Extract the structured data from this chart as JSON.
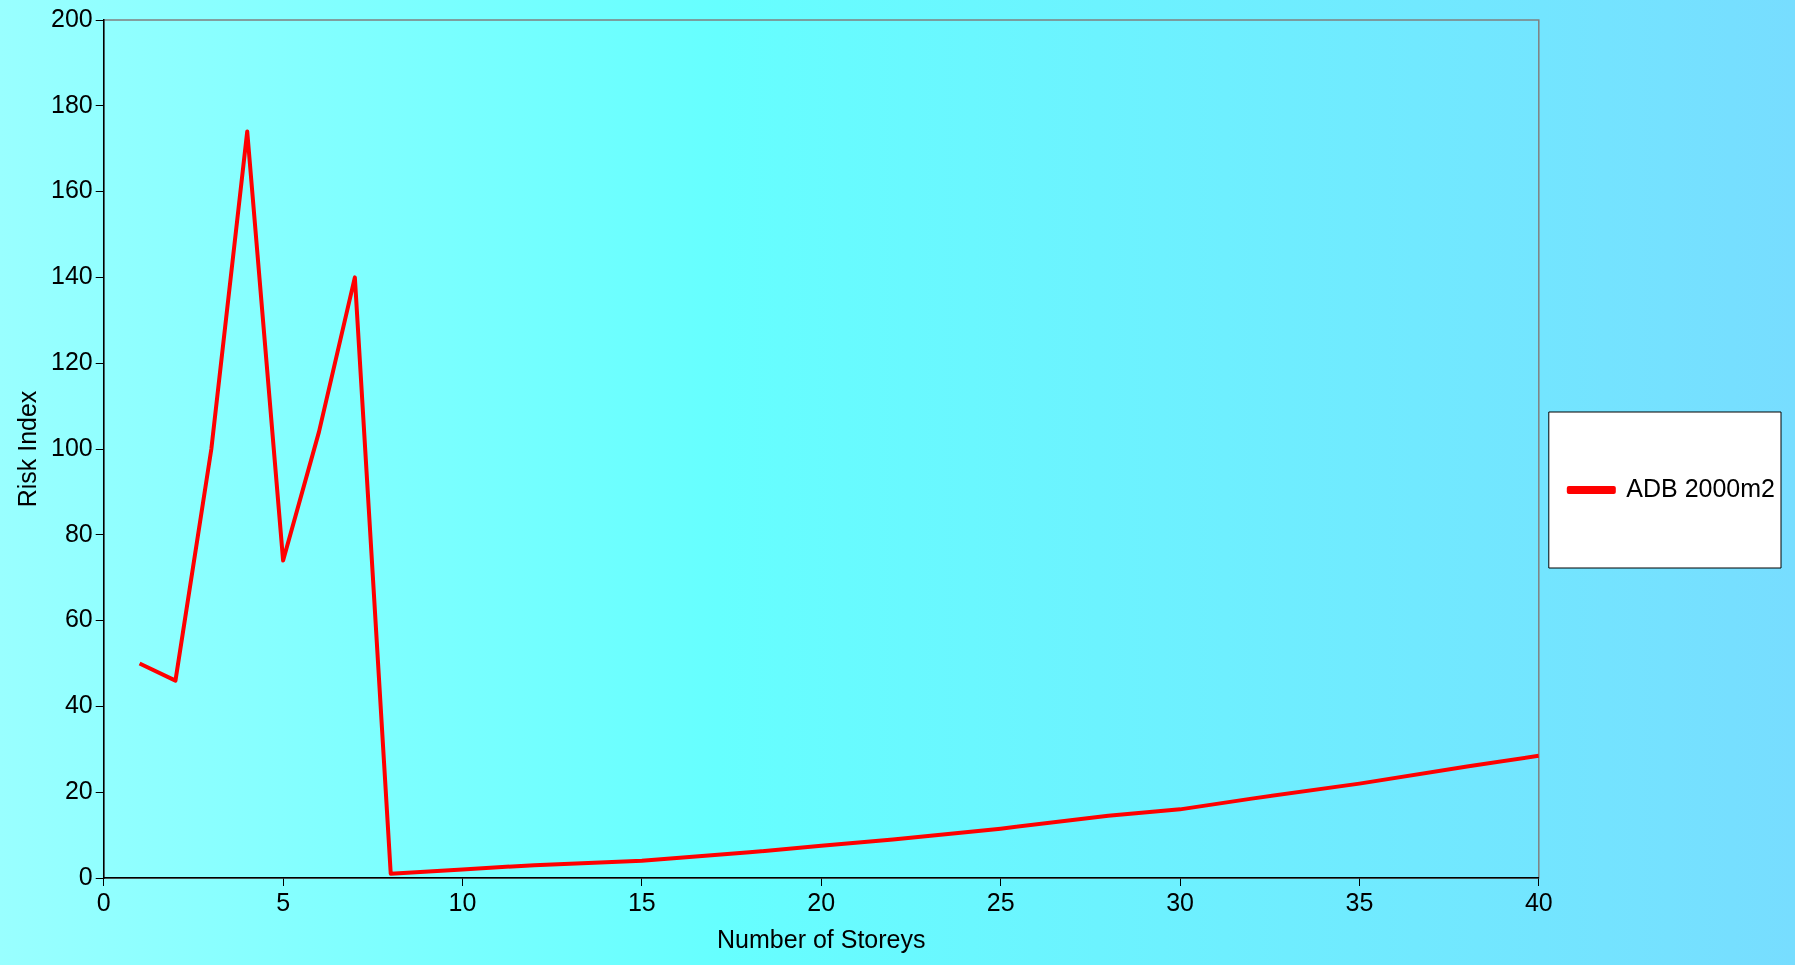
{
  "chart_data": {
    "type": "line",
    "xlabel": "Number of Storeys",
    "ylabel": "Risk Index",
    "xlim": [
      0,
      40
    ],
    "xticks": [
      0,
      5,
      10,
      15,
      20,
      25,
      30,
      35,
      40
    ],
    "ylim": [
      0,
      200
    ],
    "yticks": [
      0,
      20,
      40,
      60,
      80,
      100,
      120,
      140,
      160,
      180,
      200
    ],
    "grid": false,
    "legend": "right",
    "marker": "none",
    "line_style": "solid",
    "series": [
      {
        "name": "ADB 2000m2",
        "color": "#ff0000",
        "x": [
          1,
          2,
          3,
          4,
          5,
          6,
          7,
          8,
          10,
          12,
          15,
          18,
          20,
          22,
          25,
          28,
          30,
          32,
          35,
          38,
          40
        ],
        "values": [
          50,
          46,
          100,
          174,
          74,
          104,
          140,
          1,
          2,
          3,
          4,
          6,
          7.5,
          9,
          11.5,
          14.5,
          16,
          18.5,
          22,
          26,
          28.5
        ]
      }
    ]
  }
}
